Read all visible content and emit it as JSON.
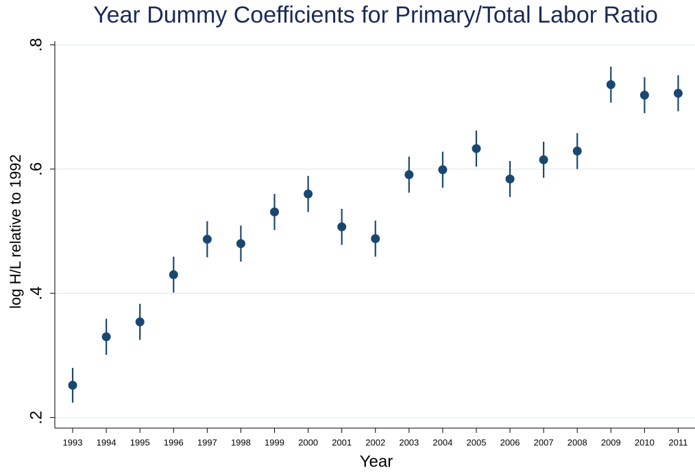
{
  "chart_data": {
    "type": "errorbar_scatter",
    "title": "Year Dummy Coefficients for Primary/Total Labor Ratio",
    "x_label": "Year",
    "y_label": "log H/L relative to 1992",
    "x": [
      1993,
      1994,
      1995,
      1996,
      1997,
      1998,
      1999,
      2000,
      2001,
      2002,
      2003,
      2004,
      2005,
      2006,
      2007,
      2008,
      2009,
      2010,
      2011
    ],
    "values": [
      0.252,
      0.33,
      0.354,
      0.43,
      0.487,
      0.48,
      0.531,
      0.56,
      0.507,
      0.488,
      0.591,
      0.599,
      0.633,
      0.584,
      0.615,
      0.629,
      0.736,
      0.719,
      0.722
    ],
    "errors": [
      0.028,
      0.029,
      0.029,
      0.029,
      0.029,
      0.029,
      0.029,
      0.029,
      0.029,
      0.029,
      0.029,
      0.029,
      0.029,
      0.029,
      0.029,
      0.029,
      0.029,
      0.029,
      0.029
    ],
    "color": "#1a476f",
    "xlim": [
      1992.47,
      2011.5
    ],
    "xticks": [
      1993,
      1994,
      1995,
      1996,
      1997,
      1998,
      1999,
      2000,
      2001,
      2002,
      2003,
      2004,
      2005,
      2006,
      2007,
      2008,
      2009,
      2010,
      2011
    ],
    "ylim": [
      0.183,
      0.806
    ],
    "yticks": [
      {
        "value": 0.2,
        "label": ".2"
      },
      {
        "value": 0.4,
        "label": ".4"
      },
      {
        "value": 0.6,
        "label": ".6"
      },
      {
        "value": 0.8,
        "label": ".8"
      }
    ],
    "grid": true
  }
}
